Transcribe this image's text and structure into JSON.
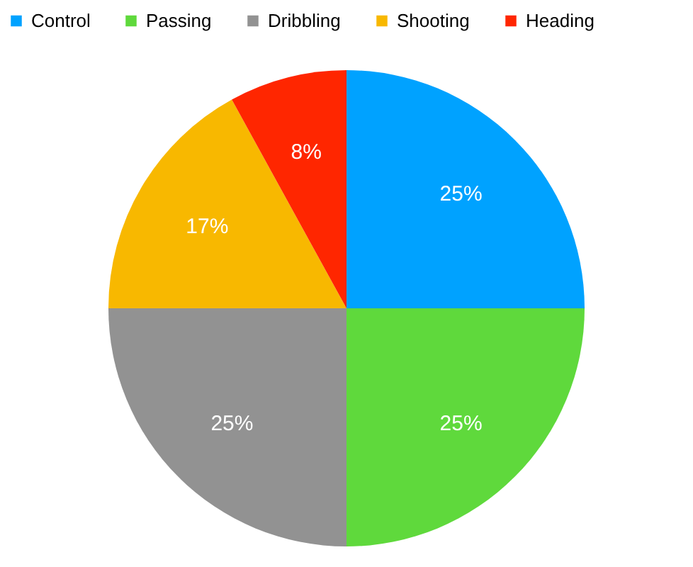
{
  "chart_data": {
    "type": "pie",
    "categories": [
      "Control",
      "Passing",
      "Dribbling",
      "Shooting",
      "Heading"
    ],
    "values": [
      25,
      25,
      25,
      17,
      8
    ],
    "colors": [
      "#00a2ff",
      "#5fd93c",
      "#929292",
      "#f8b800",
      "#ff2600"
    ],
    "value_labels": [
      "25%",
      "25%",
      "25%",
      "17%",
      "8%"
    ],
    "legend": "top"
  }
}
